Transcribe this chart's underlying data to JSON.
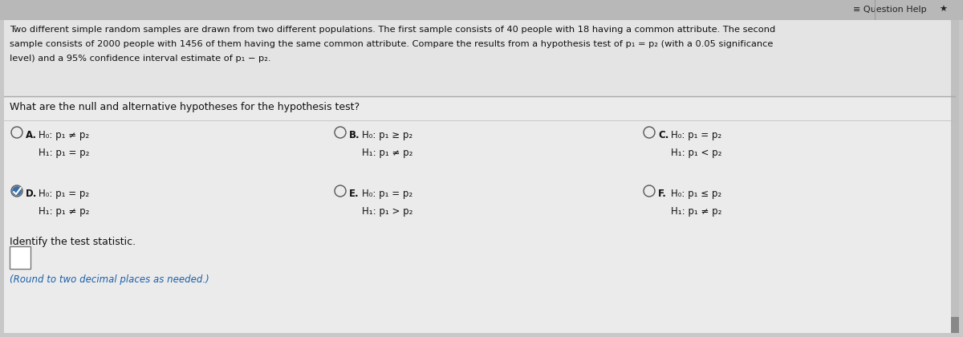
{
  "bg_color": "#c8c8c8",
  "content_bg": "#e8e8e8",
  "white_area": "#f0f0f0",
  "title_text_line1": "Two different simple random samples are drawn from two different populations. The first sample consists of 40 people with 18 having a common attribute. The second",
  "title_text_line2": "sample consists of 2000 people with 1456 of them having the same common attribute. Compare the results from a hypothesis test of p₁ = p₂ (with a 0.05 significance",
  "title_text_line3": "level) and a 95% confidence interval estimate of p₁ − p₂.",
  "question": "What are the null and alternative hypotheses for the hypothesis test?",
  "options": {
    "A": {
      "h0": "H₀: p₁ ≠ p₂",
      "h1": "H₁: p₁ = p₂",
      "selected": false
    },
    "B": {
      "h0": "H₀: p₁ ≥ p₂",
      "h1": "H₁: p₁ ≠ p₂",
      "selected": false
    },
    "C": {
      "h0": "H₀: p₁ = p₂",
      "h1": "H₁: p₁ < p₂",
      "selected": false
    },
    "D": {
      "h0": "H₀: p₁ = p₂",
      "h1": "H₁: p₁ ≠ p₂",
      "selected": true
    },
    "E": {
      "h0": "H₀: p₁ = p₂",
      "h1": "H₁: p₁ > p₂",
      "selected": false
    },
    "F": {
      "h0": "H₀: p₁ ≤ p₂",
      "h1": "H₁: p₁ ≠ p₂",
      "selected": false
    }
  },
  "identify_text": "Identify the test statistic.",
  "round_text": "(Round to two decimal places as needed.)",
  "text_color": "#111111",
  "separator_color": "#999999",
  "toolbar_bg": "#b0b0b0",
  "question_help_text": "≡ Question Help",
  "star_icon": "★"
}
